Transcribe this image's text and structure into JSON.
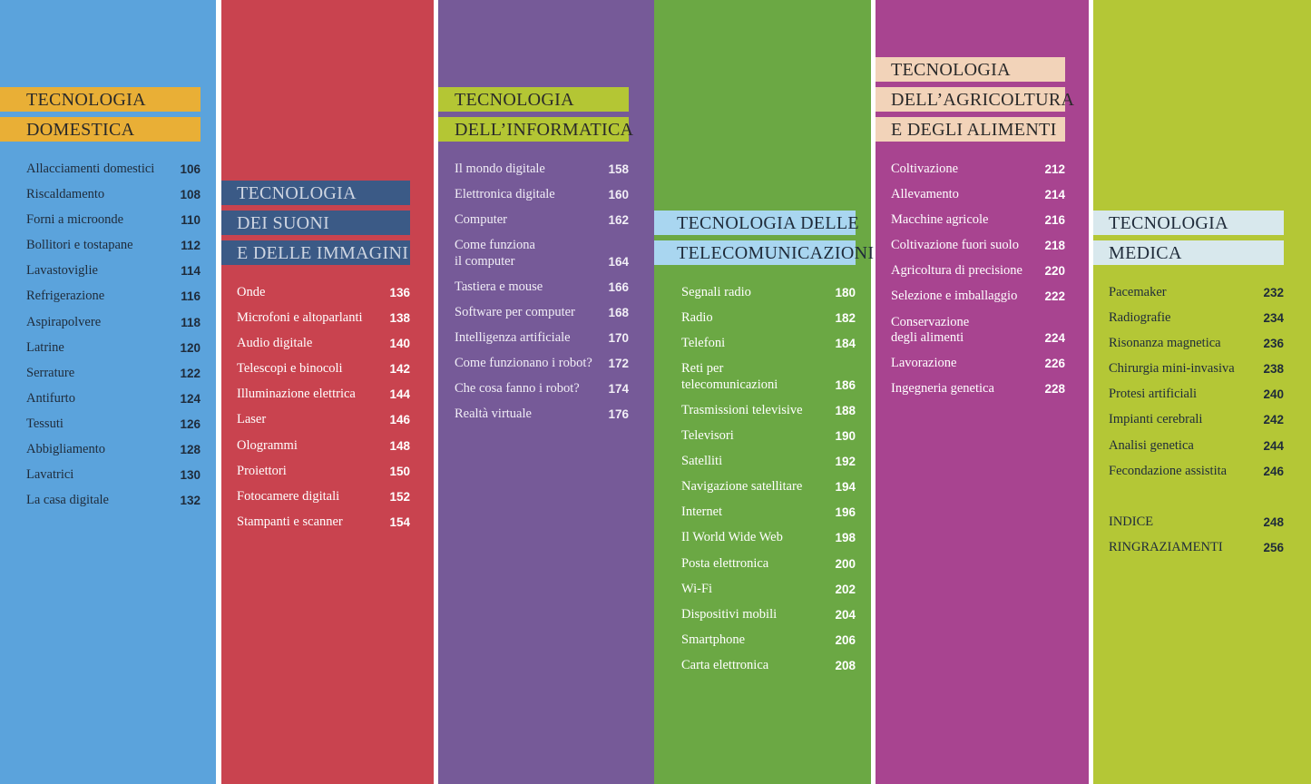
{
  "columns": [
    {
      "title_lines": [
        "TECNOLOGIA",
        "DOMESTICA"
      ],
      "entries": [
        {
          "name": "Allacciamenti domestici",
          "page": 106
        },
        {
          "name": "Riscaldamento",
          "page": 108
        },
        {
          "name": "Forni a microonde",
          "page": 110
        },
        {
          "name": "Bollitori e tostapane",
          "page": 112
        },
        {
          "name": "Lavastoviglie",
          "page": 114
        },
        {
          "name": "Refrigerazione",
          "page": 116
        },
        {
          "name": "Aspirapolvere",
          "page": 118
        },
        {
          "name": "Latrine",
          "page": 120
        },
        {
          "name": "Serrature",
          "page": 122
        },
        {
          "name": "Antifurto",
          "page": 124
        },
        {
          "name": "Tessuti",
          "page": 126
        },
        {
          "name": "Abbigliamento",
          "page": 128
        },
        {
          "name": "Lavatrici",
          "page": 130
        },
        {
          "name": "La casa digitale",
          "page": 132
        }
      ]
    },
    {
      "title_lines": [
        "TECNOLOGIA",
        "DEI SUONI",
        "E DELLE IMMAGINI"
      ],
      "entries": [
        {
          "name": "Onde",
          "page": 136
        },
        {
          "name": "Microfoni e altoparlanti",
          "page": 138
        },
        {
          "name": "Audio digitale",
          "page": 140
        },
        {
          "name": "Telescopi e binocoli",
          "page": 142
        },
        {
          "name": "Illuminazione elettrica",
          "page": 144
        },
        {
          "name": "Laser",
          "page": 146
        },
        {
          "name": "Ologrammi",
          "page": 148
        },
        {
          "name": "Proiettori",
          "page": 150
        },
        {
          "name": "Fotocamere digitali",
          "page": 152
        },
        {
          "name": "Stampanti e scanner",
          "page": 154
        }
      ]
    },
    {
      "title_lines": [
        "TECNOLOGIA",
        "DELL’INFORMATICA"
      ],
      "entries": [
        {
          "name": "Il mondo digitale",
          "page": 158
        },
        {
          "name": "Elettronica digitale",
          "page": 160
        },
        {
          "name": "Computer",
          "page": 162
        },
        {
          "name": "Come funziona\nil computer",
          "page": 164
        },
        {
          "name": "Tastiera e mouse",
          "page": 166
        },
        {
          "name": "Software per computer",
          "page": 168
        },
        {
          "name": "Intelligenza artificiale",
          "page": 170
        },
        {
          "name": "Come funzionano i robot?",
          "page": 172
        },
        {
          "name": "Che cosa fanno i robot?",
          "page": 174
        },
        {
          "name": "Realtà virtuale",
          "page": 176
        }
      ]
    },
    {
      "title_lines": [
        "TECNOLOGIA DELLE",
        "TELECOMUNICAZIONI"
      ],
      "entries": [
        {
          "name": "Segnali radio",
          "page": 180
        },
        {
          "name": "Radio",
          "page": 182
        },
        {
          "name": "Telefoni",
          "page": 184
        },
        {
          "name": "Reti per\ntelecomunicazioni",
          "page": 186
        },
        {
          "name": "Trasmissioni televisive",
          "page": 188
        },
        {
          "name": "Televisori",
          "page": 190
        },
        {
          "name": "Satelliti",
          "page": 192
        },
        {
          "name": "Navigazione satellitare",
          "page": 194
        },
        {
          "name": "Internet",
          "page": 196
        },
        {
          "name": "Il World Wide Web",
          "page": 198
        },
        {
          "name": "Posta elettronica",
          "page": 200
        },
        {
          "name": "Wi-Fi",
          "page": 202
        },
        {
          "name": "Dispositivi mobili",
          "page": 204
        },
        {
          "name": "Smartphone",
          "page": 206
        },
        {
          "name": "Carta elettronica",
          "page": 208
        }
      ]
    },
    {
      "title_lines": [
        "TECNOLOGIA",
        "DELL’AGRICOLTURA",
        "E DEGLI ALIMENTI"
      ],
      "entries": [
        {
          "name": "Coltivazione",
          "page": 212
        },
        {
          "name": "Allevamento",
          "page": 214
        },
        {
          "name": "Macchine agricole",
          "page": 216
        },
        {
          "name": "Coltivazione fuori suolo",
          "page": 218
        },
        {
          "name": "Agricoltura di precisione",
          "page": 220
        },
        {
          "name": "Selezione e imballaggio",
          "page": 222
        },
        {
          "name": "Conservazione\ndegli alimenti",
          "page": 224
        },
        {
          "name": "Lavorazione",
          "page": 226
        },
        {
          "name": "Ingegneria genetica",
          "page": 228
        }
      ]
    },
    {
      "title_lines": [
        "TECNOLOGIA",
        "MEDICA"
      ],
      "entries": [
        {
          "name": "Pacemaker",
          "page": 232
        },
        {
          "name": "Radiografie",
          "page": 234
        },
        {
          "name": "Risonanza magnetica",
          "page": 236
        },
        {
          "name": "Chirurgia mini-invasiva",
          "page": 238
        },
        {
          "name": "Protesi artificiali",
          "page": 240
        },
        {
          "name": "Impianti cerebrali",
          "page": 242
        },
        {
          "name": "Analisi genetica",
          "page": 244
        },
        {
          "name": "Fecondazione assistita",
          "page": 246
        }
      ],
      "back_matter": [
        {
          "name": "INDICE",
          "page": 248
        },
        {
          "name": "RINGRAZIAMENTI",
          "page": 256
        }
      ]
    }
  ]
}
